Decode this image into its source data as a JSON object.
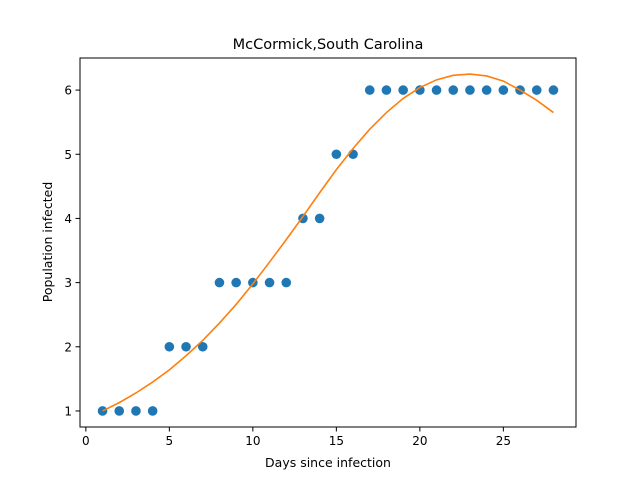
{
  "chart_data": {
    "type": "scatter",
    "title": "McCormick,South Carolina",
    "xlabel": "Days since infection",
    "ylabel": "Population infected",
    "xlim": [
      -0.35,
      29.35
    ],
    "ylim": [
      0.75,
      6.5
    ],
    "x_ticks": [
      0,
      5,
      10,
      15,
      20,
      25
    ],
    "y_ticks": [
      1,
      2,
      3,
      4,
      5,
      6
    ],
    "grid": false,
    "colors": {
      "scatter": "#1f77b4",
      "fit": "#ff7f0e"
    },
    "series": [
      {
        "type": "scatter",
        "x": [
          1,
          2,
          3,
          4,
          5,
          6,
          7,
          8,
          9,
          10,
          11,
          12,
          13,
          14,
          15,
          16,
          17,
          18,
          19,
          20,
          21,
          22,
          23,
          24,
          25,
          26,
          27,
          28
        ],
        "y": [
          1,
          1,
          1,
          1,
          2,
          2,
          2,
          3,
          3,
          3,
          3,
          3,
          4,
          4,
          5,
          5,
          6,
          6,
          6,
          6,
          6,
          6,
          6,
          6,
          6,
          6,
          6,
          6
        ]
      },
      {
        "type": "line",
        "x": [
          1,
          2,
          3,
          4,
          5,
          6,
          7,
          8,
          9,
          10,
          11,
          12,
          13,
          14,
          15,
          16,
          17,
          18,
          19,
          20,
          21,
          22,
          23,
          24,
          25,
          26,
          27,
          28
        ],
        "y": [
          1.0,
          1.13,
          1.28,
          1.45,
          1.64,
          1.86,
          2.1,
          2.37,
          2.66,
          2.98,
          3.32,
          3.67,
          4.03,
          4.4,
          4.76,
          5.09,
          5.39,
          5.65,
          5.87,
          6.04,
          6.16,
          6.23,
          6.25,
          6.22,
          6.14,
          6.0,
          5.84,
          5.65
        ]
      }
    ]
  }
}
